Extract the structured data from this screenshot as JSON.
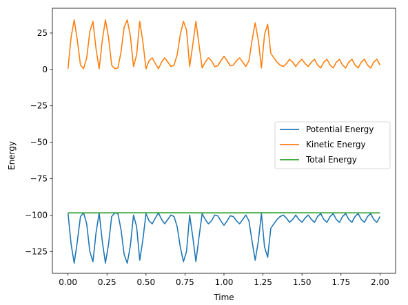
{
  "chart_data": {
    "type": "line",
    "title": "",
    "xlabel": "Time",
    "ylabel": "Energy",
    "xlim": [
      -0.1,
      2.1
    ],
    "ylim": [
      -140,
      42
    ],
    "xticks": [
      0.0,
      0.25,
      0.5,
      0.75,
      1.0,
      1.25,
      1.5,
      1.75,
      2.0
    ],
    "xtick_labels": [
      "0.00",
      "0.25",
      "0.50",
      "0.75",
      "1.00",
      "1.25",
      "1.50",
      "1.75",
      "2.00"
    ],
    "yticks": [
      25,
      0,
      -25,
      -50,
      -75,
      -100,
      -125
    ],
    "ytick_labels": [
      "25",
      "0",
      "−25",
      "−50",
      "−75",
      "−100",
      "−125"
    ],
    "grid": false,
    "legend_position": "center-right",
    "series": [
      {
        "name": "Potential Energy",
        "color": "#1f77b4",
        "x": [
          0.0,
          0.02,
          0.04,
          0.06,
          0.08,
          0.1,
          0.12,
          0.14,
          0.16,
          0.18,
          0.2,
          0.22,
          0.24,
          0.26,
          0.28,
          0.3,
          0.32,
          0.34,
          0.36,
          0.38,
          0.4,
          0.42,
          0.44,
          0.46,
          0.48,
          0.5,
          0.52,
          0.54,
          0.56,
          0.58,
          0.6,
          0.62,
          0.64,
          0.66,
          0.68,
          0.7,
          0.72,
          0.74,
          0.76,
          0.78,
          0.8,
          0.82,
          0.84,
          0.86,
          0.88,
          0.9,
          0.92,
          0.94,
          0.96,
          0.98,
          1.0,
          1.02,
          1.04,
          1.06,
          1.08,
          1.1,
          1.12,
          1.14,
          1.16,
          1.18,
          1.2,
          1.22,
          1.24,
          1.26,
          1.28,
          1.3,
          1.32,
          1.34,
          1.36,
          1.38,
          1.4,
          1.42,
          1.44,
          1.46,
          1.48,
          1.5,
          1.52,
          1.54,
          1.56,
          1.58,
          1.6,
          1.62,
          1.64,
          1.66,
          1.68,
          1.7,
          1.72,
          1.74,
          1.76,
          1.78,
          1.8,
          1.82,
          1.84,
          1.86,
          1.88,
          1.9,
          1.92,
          1.94,
          1.96,
          1.98,
          2.0
        ],
        "values": [
          -98.5,
          -120,
          -133,
          -118,
          -101,
          -98.5,
          -106,
          -125,
          -132,
          -112,
          -98.5,
          -118,
          -133,
          -120,
          -101,
          -98.5,
          -99,
          -110,
          -127,
          -133,
          -121,
          -100,
          -108,
          -131,
          -117,
          -99,
          -104,
          -106,
          -102,
          -98.5,
          -103,
          -106,
          -103,
          -100,
          -101,
          -108,
          -122,
          -132,
          -125,
          -100,
          -115,
          -132,
          -115,
          -99,
          -103,
          -106,
          -104,
          -100,
          -100.5,
          -104,
          -107,
          -104,
          -100.5,
          -101,
          -104,
          -106,
          -103,
          -100,
          -104,
          -118,
          -131,
          -118,
          -99,
          -122,
          -129,
          -109,
          -106,
          -103,
          -101,
          -100,
          -102,
          -105,
          -103,
          -100,
          -103,
          -105,
          -102,
          -100,
          -103,
          -105,
          -101,
          -99,
          -103,
          -105,
          -101,
          -99,
          -103,
          -105,
          -101,
          -99,
          -103,
          -105,
          -101,
          -99,
          -103,
          -105,
          -101,
          -99,
          -103,
          -105,
          -101
        ]
      },
      {
        "name": "Kinetic Energy",
        "color": "#ff7f0e",
        "x": [
          0.0,
          0.02,
          0.04,
          0.06,
          0.08,
          0.1,
          0.12,
          0.14,
          0.16,
          0.18,
          0.2,
          0.22,
          0.24,
          0.26,
          0.28,
          0.3,
          0.32,
          0.34,
          0.36,
          0.38,
          0.4,
          0.42,
          0.44,
          0.46,
          0.48,
          0.5,
          0.52,
          0.54,
          0.56,
          0.58,
          0.6,
          0.62,
          0.64,
          0.66,
          0.68,
          0.7,
          0.72,
          0.74,
          0.76,
          0.78,
          0.8,
          0.82,
          0.84,
          0.86,
          0.88,
          0.9,
          0.92,
          0.94,
          0.96,
          0.98,
          1.0,
          1.02,
          1.04,
          1.06,
          1.08,
          1.1,
          1.12,
          1.14,
          1.16,
          1.18,
          1.2,
          1.22,
          1.24,
          1.26,
          1.28,
          1.3,
          1.32,
          1.34,
          1.36,
          1.38,
          1.4,
          1.42,
          1.44,
          1.46,
          1.48,
          1.5,
          1.52,
          1.54,
          1.56,
          1.58,
          1.6,
          1.62,
          1.64,
          1.66,
          1.68,
          1.7,
          1.72,
          1.74,
          1.76,
          1.78,
          1.8,
          1.82,
          1.84,
          1.86,
          1.88,
          1.9,
          1.92,
          1.94,
          1.96,
          1.98,
          2.0
        ],
        "values": [
          0.5,
          22,
          34,
          20,
          3,
          0.5,
          8,
          26,
          33,
          14,
          0.5,
          20,
          34,
          22,
          3,
          0.5,
          1,
          12,
          29,
          34,
          23,
          2,
          10,
          33,
          19,
          0.5,
          6,
          8,
          4,
          0.5,
          5,
          8,
          5,
          2,
          3,
          10,
          24,
          33,
          27,
          2,
          17,
          33,
          17,
          1,
          5,
          8,
          6,
          2,
          2.5,
          6,
          9,
          6,
          2.5,
          3,
          6,
          8,
          5,
          2,
          6,
          20,
          32,
          20,
          1,
          24,
          31,
          11,
          8,
          5,
          3,
          2,
          4,
          7,
          5,
          2,
          5,
          7,
          4,
          2,
          5,
          7,
          3,
          1,
          5,
          7,
          3,
          1,
          5,
          7,
          3,
          1,
          5,
          7,
          3,
          1,
          5,
          7,
          3,
          1,
          5,
          7,
          3
        ]
      },
      {
        "name": "Total Energy",
        "color": "#2ca02c",
        "x": [
          0.0,
          0.5,
          1.0,
          1.5,
          2.0
        ],
        "values": [
          -98.5,
          -98.4,
          -98.5,
          -98.4,
          -98.5
        ]
      }
    ]
  }
}
